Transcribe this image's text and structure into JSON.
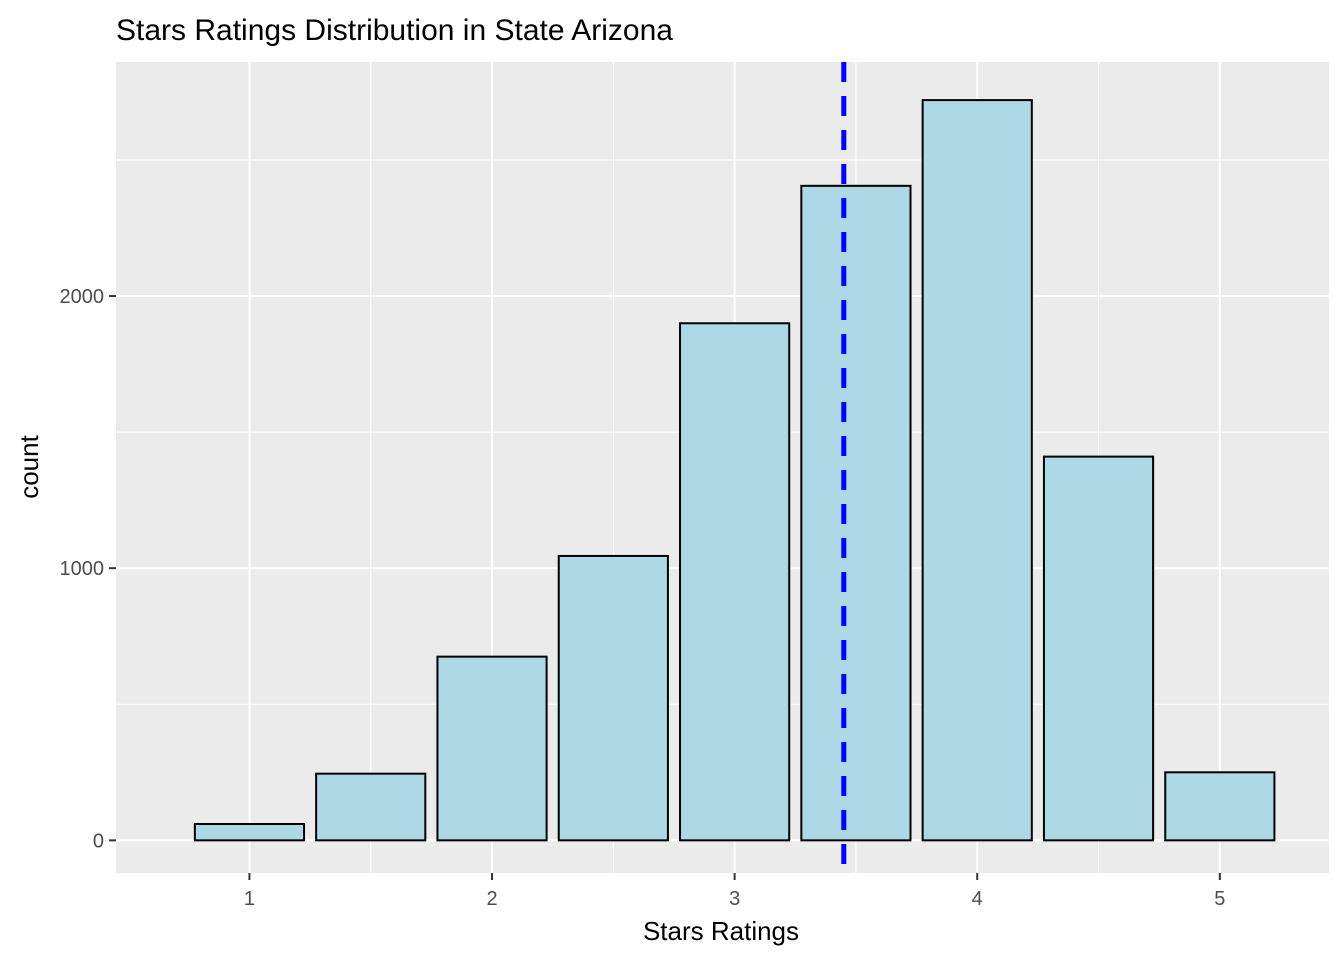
{
  "chart_data": {
    "type": "bar",
    "title": "Stars Ratings Distribution in State Arizona",
    "xlabel": "Stars Ratings",
    "ylabel": "count",
    "x": [
      1,
      1.5,
      2,
      2.5,
      3,
      3.5,
      4,
      4.5,
      5
    ],
    "values": [
      60,
      245,
      675,
      1045,
      1900,
      2405,
      2720,
      1410,
      250
    ],
    "bar_width": 0.45,
    "xlim": [
      0.45,
      5.45
    ],
    "ylim": [
      -120,
      2860
    ],
    "x_ticks": [
      1,
      2,
      3,
      4,
      5
    ],
    "y_ticks": [
      0,
      1000,
      2000
    ],
    "mean_line": {
      "x": 3.45,
      "style": "dashed",
      "color": "#0000ff"
    },
    "bar_fill": "#add8e6",
    "bar_stroke": "#000000",
    "panel_background": "#ebebeb",
    "grid": true
  }
}
